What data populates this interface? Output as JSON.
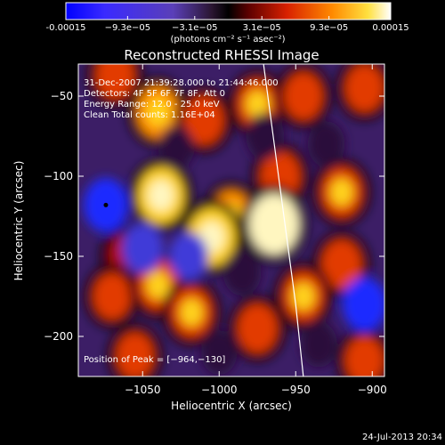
{
  "colorbar": {
    "tick_labels": [
      "-0.00015",
      "−9.3e−05",
      "−3.1e−05",
      "3.1e−05",
      "9.3e−05",
      "0.00015"
    ],
    "unit_label": "(photons cm⁻² s⁻¹ asec⁻²)",
    "range": [
      -0.00015,
      0.00015
    ]
  },
  "chart_data": {
    "type": "heatmap",
    "title": "Reconstructed RHESSI Image",
    "xlabel": "Heliocentric X (arcsec)",
    "ylabel": "Heliocentric Y (arcsec)",
    "xlim": [
      -1092,
      -892
    ],
    "ylim": [
      -225,
      -30
    ],
    "x_ticks": [
      -1050,
      -1000,
      -950,
      -900
    ],
    "x_tick_labels": [
      "−1050",
      "−1000",
      "−950",
      "−900"
    ],
    "y_ticks": [
      -50,
      -100,
      -150,
      -200
    ],
    "y_tick_labels": [
      "−50",
      "−100",
      "−150",
      "−200"
    ],
    "annotations": [
      "31-Dec-2007 21:39:28.000 to 21:44:46.000",
      "Detectors: 4F 5F 6F 7F 8F, Att 0",
      "Energy Range: 12.0 - 25.0 keV",
      "Clean     Total counts: 1.16E+04"
    ],
    "peak_label": "Position of Peak = [−964,−130]",
    "peak": [
      -964,
      -130
    ],
    "marker": [
      -1074,
      -118
    ],
    "limb_line": [
      [
        -971,
        -30
      ],
      [
        -950,
        -180
      ],
      [
        -945,
        -225
      ]
    ],
    "features": [
      {
        "x": -1068,
        "y": -37,
        "v": 0.5
      },
      {
        "x": -1040,
        "y": -60,
        "v": 0.7
      },
      {
        "x": -1010,
        "y": -65,
        "v": 0.55
      },
      {
        "x": -975,
        "y": -55,
        "v": 0.6
      },
      {
        "x": -945,
        "y": -50,
        "v": 0.5
      },
      {
        "x": -905,
        "y": -45,
        "v": 0.5
      },
      {
        "x": -1038,
        "y": -112,
        "v": 0.85
      },
      {
        "x": -992,
        "y": -125,
        "v": 0.65
      },
      {
        "x": -960,
        "y": -100,
        "v": 0.55
      },
      {
        "x": -920,
        "y": -110,
        "v": 0.6
      },
      {
        "x": -1005,
        "y": -138,
        "v": 0.9
      },
      {
        "x": -964,
        "y": -130,
        "v": 1.0
      },
      {
        "x": -1060,
        "y": -150,
        "v": 0.4
      },
      {
        "x": -1070,
        "y": -175,
        "v": 0.45
      },
      {
        "x": -1040,
        "y": -168,
        "v": 0.6
      },
      {
        "x": -920,
        "y": -155,
        "v": 0.55
      },
      {
        "x": -945,
        "y": -175,
        "v": 0.6
      },
      {
        "x": -1018,
        "y": -185,
        "v": 0.6
      },
      {
        "x": -975,
        "y": -195,
        "v": 0.55
      },
      {
        "x": -905,
        "y": -215,
        "v": 0.5
      },
      {
        "x": -1055,
        "y": -212,
        "v": 0.45
      },
      {
        "x": -1074,
        "y": -118,
        "v": -0.75
      },
      {
        "x": -1050,
        "y": -145,
        "v": -0.6
      },
      {
        "x": -1020,
        "y": -150,
        "v": -0.5
      },
      {
        "x": -985,
        "y": -160,
        "v": -0.45
      },
      {
        "x": -970,
        "y": -75,
        "v": -0.45
      },
      {
        "x": -930,
        "y": -80,
        "v": -0.4
      },
      {
        "x": -905,
        "y": -180,
        "v": -0.75
      },
      {
        "x": -1028,
        "y": -82,
        "v": -0.35
      },
      {
        "x": -935,
        "y": -205,
        "v": -0.4
      },
      {
        "x": -1000,
        "y": -210,
        "v": -0.35
      }
    ]
  },
  "footer": {
    "timestamp": "24-Jul-2013 20:34"
  }
}
